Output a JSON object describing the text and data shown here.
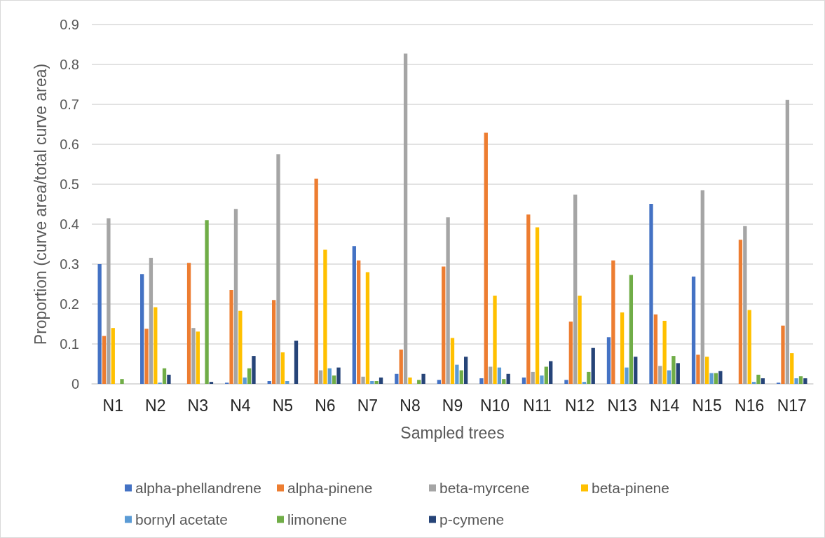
{
  "chart_data": {
    "type": "bar",
    "xlabel": "Sampled trees",
    "ylabel": "Proportion (curve area/total curve area)",
    "categories": [
      "N1",
      "N2",
      "N3",
      "N4",
      "N5",
      "N6",
      "N7",
      "N8",
      "N9",
      "N10",
      "N11",
      "N12",
      "N13",
      "N14",
      "N15",
      "N16",
      "N17"
    ],
    "series": [
      {
        "name": "alpha-phellandrene",
        "color": "#4472c4",
        "values": [
          0.3,
          0.275,
          0,
          0.003,
          0.007,
          0,
          0.345,
          0.025,
          0.01,
          0.014,
          0.016,
          0.01,
          0.117,
          0.451,
          0.269,
          0,
          0.003
        ]
      },
      {
        "name": "alpha-pinene",
        "color": "#ed7d31",
        "values": [
          0.12,
          0.138,
          0.303,
          0.235,
          0.21,
          0.514,
          0.309,
          0.086,
          0.294,
          0.629,
          0.424,
          0.156,
          0.309,
          0.174,
          0.073,
          0.361,
          0.146
        ]
      },
      {
        "name": "beta-myrcene",
        "color": "#a5a5a5",
        "values": [
          0.415,
          0.316,
          0.14,
          0.438,
          0.575,
          0.034,
          0.018,
          0.827,
          0.417,
          0.043,
          0.03,
          0.474,
          0,
          0.045,
          0.485,
          0.395,
          0.711
        ]
      },
      {
        "name": "beta-pinene",
        "color": "#ffc000",
        "values": [
          0.14,
          0.192,
          0.131,
          0.183,
          0.079,
          0.336,
          0.28,
          0.016,
          0.115,
          0.221,
          0.392,
          0.221,
          0.179,
          0.158,
          0.068,
          0.185,
          0.077
        ]
      },
      {
        "name": "bornyl acetate",
        "color": "#5b9bd5",
        "values": [
          0,
          0.003,
          0,
          0.016,
          0.007,
          0.039,
          0.007,
          0,
          0.048,
          0.041,
          0.021,
          0.005,
          0.041,
          0.034,
          0.027,
          0.005,
          0.014
        ]
      },
      {
        "name": "limonene",
        "color": "#70ad47",
        "values": [
          0.012,
          0.039,
          0.41,
          0.039,
          0,
          0.021,
          0.007,
          0.01,
          0.034,
          0.012,
          0.043,
          0.03,
          0.273,
          0.07,
          0.027,
          0.023,
          0.019
        ]
      },
      {
        "name": "p-cymene",
        "color": "#264478",
        "values": [
          0,
          0.023,
          0.005,
          0.07,
          0.108,
          0.041,
          0.016,
          0.025,
          0.068,
          0.025,
          0.057,
          0.09,
          0.068,
          0.052,
          0.032,
          0.014,
          0.014
        ]
      }
    ],
    "ylim": [
      0,
      0.9
    ],
    "yticks": [
      0,
      0.1,
      0.2,
      0.3,
      0.4,
      0.5,
      0.6,
      0.7,
      0.8,
      0.9
    ],
    "grid": "y",
    "legend": "bottom"
  }
}
